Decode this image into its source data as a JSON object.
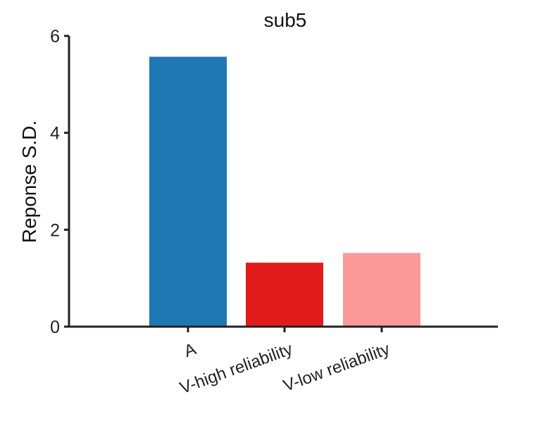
{
  "chart_data": {
    "type": "bar",
    "title": "sub5",
    "xlabel": "",
    "ylabel": "Reponse S.D.",
    "categories": [
      "A",
      "V-high reliability",
      "V-low reliability"
    ],
    "values": [
      5.57,
      1.32,
      1.52
    ],
    "colors": [
      "#1f77b4",
      "#e31a1c",
      "#fb9a99"
    ],
    "ylim": [
      0,
      6
    ],
    "yticks": [
      0,
      2,
      4,
      6
    ],
    "ytick_labels": [
      "0",
      "2",
      "4",
      "6"
    ],
    "grid": false,
    "legend": "none"
  }
}
